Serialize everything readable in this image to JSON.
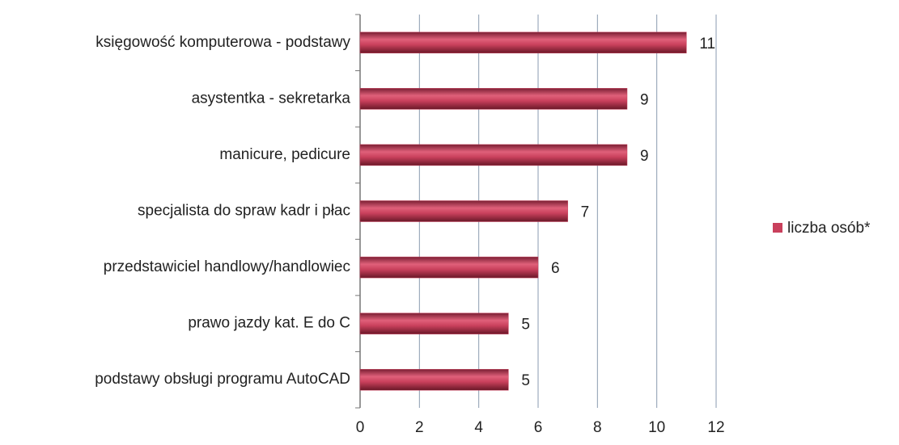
{
  "chart_data": {
    "type": "barh",
    "categories": [
      "księgowość komputerowa - podstawy",
      "asystentka - sekretarka",
      "manicure, pedicure",
      "specjalista do spraw kadr i płac",
      "przedstawiciel handlowy/handlowiec",
      "prawo jazdy kat. E do C",
      "podstawy obsługi programu AutoCAD"
    ],
    "series": [
      {
        "name": "liczba osób*",
        "color": "#c9405c",
        "values": [
          11,
          9,
          9,
          7,
          6,
          5,
          5
        ]
      }
    ],
    "xlim": [
      0,
      12
    ],
    "xticks": [
      0,
      2,
      4,
      6,
      8,
      10,
      12
    ],
    "grid": true,
    "legend": "right"
  }
}
